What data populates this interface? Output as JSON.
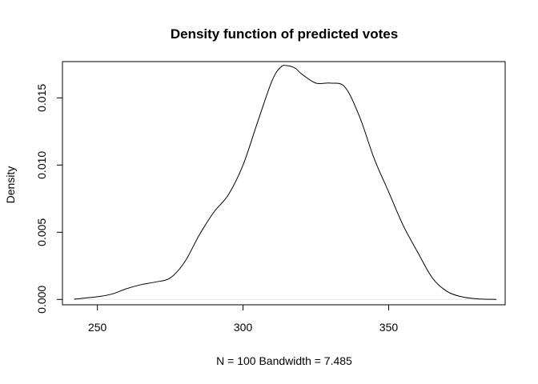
{
  "chart_data": {
    "type": "line",
    "title": "Density function of predicted votes",
    "xlabel": "N = 100   Bandwidth = 7.485",
    "ylabel": "Density",
    "xlim": [
      238,
      390
    ],
    "ylim": [
      -0.0004,
      0.0177
    ],
    "x_ticks": [
      250,
      300,
      350
    ],
    "y_ticks": [
      0.0,
      0.005,
      0.01,
      0.015
    ],
    "x_tick_labels": [
      "250",
      "300",
      "350"
    ],
    "y_tick_labels": [
      "0.000",
      "0.005",
      "0.010",
      "0.015"
    ],
    "grid": false,
    "legend": "none",
    "series": [
      {
        "x": [
          242,
          250,
          255,
          260,
          265,
          270,
          275,
          280,
          285,
          290,
          295,
          300,
          305,
          310,
          313,
          315,
          318,
          320,
          325,
          330,
          335,
          340,
          345,
          350,
          355,
          360,
          365,
          370,
          375,
          380,
          387
        ],
        "y": [
          2e-05,
          0.0002,
          0.0004,
          0.0008,
          0.0011,
          0.0013,
          0.0016,
          0.0028,
          0.0048,
          0.0065,
          0.0078,
          0.01,
          0.0132,
          0.0163,
          0.0173,
          0.0174,
          0.0172,
          0.0168,
          0.0161,
          0.0161,
          0.0158,
          0.0136,
          0.0105,
          0.008,
          0.0055,
          0.0035,
          0.0016,
          0.0006,
          0.0002,
          5e-05,
          0.0
        ]
      }
    ]
  }
}
